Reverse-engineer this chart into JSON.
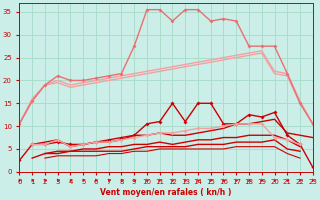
{
  "bg_color": "#cceee8",
  "grid_color": "#aaddcc",
  "tick_color": "#cc0000",
  "label_color": "#cc0000",
  "xlim": [
    0,
    23
  ],
  "ylim": [
    0,
    37
  ],
  "yticks": [
    0,
    5,
    10,
    15,
    20,
    25,
    30,
    35
  ],
  "xticks": [
    0,
    1,
    2,
    3,
    4,
    5,
    6,
    7,
    8,
    9,
    10,
    11,
    12,
    13,
    14,
    15,
    16,
    17,
    18,
    19,
    20,
    21,
    22,
    23
  ],
  "xlabel": "Vent moyen/en rafales ( kn/h )",
  "series": [
    {
      "name": "light_pink_smooth_lower",
      "x": [
        0,
        1,
        2,
        3,
        4,
        5,
        6,
        7,
        8,
        9,
        10,
        11,
        12,
        13,
        14,
        15,
        16,
        17,
        18,
        19,
        20,
        21,
        22,
        23
      ],
      "y": [
        10.5,
        15.5,
        19.0,
        19.5,
        18.5,
        19.0,
        19.5,
        20.0,
        20.5,
        21.0,
        21.5,
        22.0,
        22.5,
        23.0,
        23.5,
        24.0,
        24.5,
        25.0,
        25.5,
        26.0,
        21.5,
        21.0,
        15.0,
        10.5
      ],
      "color": "#f4a0a0",
      "marker": null,
      "lw": 1.0,
      "ms": 0
    },
    {
      "name": "light_pink_smooth_upper",
      "x": [
        0,
        1,
        2,
        3,
        4,
        5,
        6,
        7,
        8,
        9,
        10,
        11,
        12,
        13,
        14,
        15,
        16,
        17,
        18,
        19,
        20,
        21,
        22,
        23
      ],
      "y": [
        10.5,
        16.0,
        19.0,
        20.0,
        19.0,
        19.5,
        20.0,
        20.5,
        21.0,
        21.5,
        22.0,
        22.5,
        23.0,
        23.5,
        24.0,
        24.5,
        25.0,
        25.5,
        26.0,
        26.5,
        22.0,
        21.5,
        15.5,
        10.5
      ],
      "color": "#f4a0a0",
      "marker": null,
      "lw": 1.0,
      "ms": 0
    },
    {
      "name": "light_pink_upper_spiky_marked",
      "x": [
        0,
        1,
        2,
        3,
        4,
        5,
        6,
        7,
        8,
        9,
        10,
        11,
        12,
        13,
        14,
        15,
        16,
        17,
        18,
        19,
        20,
        21,
        22,
        23
      ],
      "y": [
        10.5,
        15.5,
        19.0,
        21.0,
        20.0,
        20.0,
        20.5,
        21.0,
        21.5,
        27.5,
        35.5,
        35.5,
        33.0,
        35.5,
        35.5,
        33.0,
        33.5,
        33.0,
        27.5,
        27.5,
        27.5,
        21.5,
        15.0,
        10.5
      ],
      "color": "#e87070",
      "marker": "D",
      "lw": 1.0,
      "ms": 2.0
    },
    {
      "name": "light_pink_marked_mid",
      "x": [
        0,
        1,
        2,
        3,
        4,
        5,
        6,
        7,
        8,
        9,
        10,
        11,
        12,
        13,
        14,
        15,
        16,
        17,
        18,
        19,
        20,
        21,
        22,
        23
      ],
      "y": [
        null,
        null,
        null,
        null,
        null,
        null,
        null,
        null,
        null,
        null,
        null,
        null,
        null,
        null,
        null,
        null,
        null,
        null,
        null,
        null,
        null,
        null,
        null,
        null
      ],
      "color": "#f4a0a0",
      "marker": "D",
      "lw": 1.0,
      "ms": 2.0
    },
    {
      "name": "dark_red_spiky_marked",
      "x": [
        0,
        1,
        2,
        3,
        4,
        5,
        6,
        7,
        8,
        9,
        10,
        11,
        12,
        13,
        14,
        15,
        16,
        17,
        18,
        19,
        20,
        21,
        22,
        23
      ],
      "y": [
        2.5,
        6.0,
        6.0,
        6.5,
        6.0,
        6.0,
        6.5,
        7.0,
        7.5,
        8.0,
        10.5,
        11.0,
        15.0,
        11.0,
        15.0,
        15.0,
        10.5,
        10.5,
        12.5,
        12.0,
        13.0,
        8.0,
        6.0,
        1.0
      ],
      "color": "#cc0000",
      "marker": "D",
      "lw": 1.0,
      "ms": 2.0
    },
    {
      "name": "dark_red_smooth_upper",
      "x": [
        0,
        1,
        2,
        3,
        4,
        5,
        6,
        7,
        8,
        9,
        10,
        11,
        12,
        13,
        14,
        15,
        16,
        17,
        18,
        19,
        20,
        21,
        22,
        23
      ],
      "y": [
        null,
        6.0,
        6.5,
        7.0,
        5.5,
        6.0,
        6.5,
        6.5,
        7.0,
        8.0,
        8.0,
        8.5,
        8.0,
        8.0,
        8.5,
        9.0,
        9.5,
        10.5,
        10.5,
        11.0,
        11.5,
        8.5,
        8.0,
        7.5
      ],
      "color": "#cc0000",
      "marker": null,
      "lw": 1.0,
      "ms": 0
    },
    {
      "name": "dark_red_smooth_mid",
      "x": [
        0,
        1,
        2,
        3,
        4,
        5,
        6,
        7,
        8,
        9,
        10,
        11,
        12,
        13,
        14,
        15,
        16,
        17,
        18,
        19,
        20,
        21,
        22,
        23
      ],
      "y": [
        null,
        null,
        4.0,
        4.5,
        4.5,
        5.0,
        5.0,
        5.5,
        5.5,
        6.0,
        6.0,
        6.5,
        6.0,
        6.5,
        7.0,
        7.0,
        7.5,
        7.5,
        8.0,
        8.0,
        8.0,
        7.0,
        5.5,
        null
      ],
      "color": "#cc0000",
      "marker": null,
      "lw": 1.0,
      "ms": 0
    },
    {
      "name": "dark_red_smooth_lower",
      "x": [
        0,
        1,
        2,
        3,
        4,
        5,
        6,
        7,
        8,
        9,
        10,
        11,
        12,
        13,
        14,
        15,
        16,
        17,
        18,
        19,
        20,
        21,
        22,
        23
      ],
      "y": [
        null,
        3.0,
        4.0,
        4.0,
        4.5,
        4.5,
        4.5,
        4.5,
        4.5,
        5.0,
        5.5,
        5.5,
        5.5,
        5.5,
        6.0,
        6.0,
        6.0,
        6.5,
        6.5,
        6.5,
        7.0,
        5.0,
        4.5,
        null
      ],
      "color": "#cc0000",
      "marker": null,
      "lw": 1.0,
      "ms": 0
    },
    {
      "name": "dark_red_smooth_bottom",
      "x": [
        0,
        1,
        2,
        3,
        4,
        5,
        6,
        7,
        8,
        9,
        10,
        11,
        12,
        13,
        14,
        15,
        16,
        17,
        18,
        19,
        20,
        21,
        22,
        23
      ],
      "y": [
        null,
        null,
        3.0,
        3.5,
        3.5,
        3.5,
        3.5,
        4.0,
        4.0,
        4.5,
        4.5,
        5.0,
        5.0,
        5.0,
        5.0,
        5.0,
        5.0,
        5.5,
        5.5,
        5.5,
        5.5,
        4.0,
        3.0,
        null
      ],
      "color": "#cc0000",
      "marker": null,
      "lw": 0.8,
      "ms": 0
    },
    {
      "name": "light_pink_lower_right",
      "x": [
        0,
        1,
        2,
        3,
        4,
        5,
        6,
        7,
        8,
        9,
        10,
        11,
        12,
        13,
        14,
        15,
        16,
        17,
        18,
        19,
        20,
        21,
        22,
        23
      ],
      "y": [
        null,
        6.0,
        6.0,
        7.0,
        5.5,
        6.0,
        6.5,
        6.5,
        7.0,
        7.5,
        8.0,
        8.5,
        8.5,
        9.0,
        9.5,
        9.5,
        10.0,
        10.5,
        10.5,
        10.5,
        7.5,
        7.0,
        6.0,
        null
      ],
      "color": "#f4a0a0",
      "marker": "D",
      "lw": 1.0,
      "ms": 2.0
    }
  ]
}
